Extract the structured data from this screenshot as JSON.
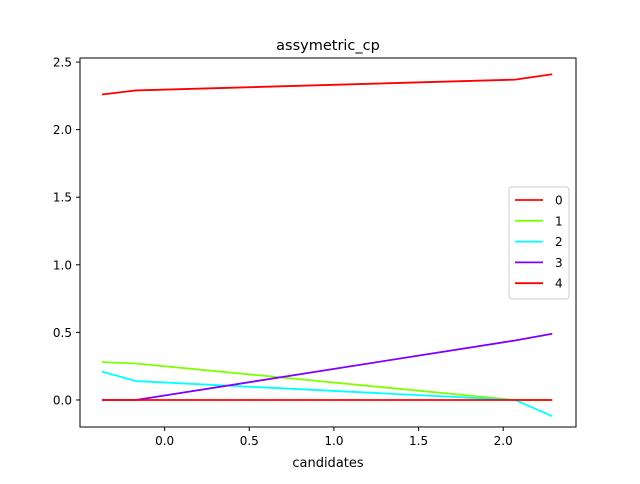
{
  "chart_data": {
    "type": "line",
    "title": "assymetric_cp",
    "xlabel": "candidates",
    "ylabel": "",
    "xlim": [
      -0.5,
      2.43
    ],
    "ylim": [
      -0.2,
      2.53
    ],
    "xticks": [
      "0.0",
      "0.5",
      "1.0",
      "1.5",
      "2.0"
    ],
    "xtick_values": [
      0.0,
      0.5,
      1.0,
      1.5,
      2.0
    ],
    "yticks": [
      "0.0",
      "0.5",
      "1.0",
      "1.5",
      "2.0",
      "2.5"
    ],
    "ytick_values": [
      0.0,
      0.5,
      1.0,
      1.5,
      2.0,
      2.5
    ],
    "grid": false,
    "legend_position": "center-right",
    "series": [
      {
        "name": "0",
        "color": "#ff0000",
        "x": [
          -0.37,
          -0.17,
          2.07,
          2.29
        ],
        "y": [
          2.26,
          2.29,
          2.37,
          2.41
        ]
      },
      {
        "name": "1",
        "color": "#80ff00",
        "x": [
          -0.37,
          -0.17,
          2.07,
          2.29
        ],
        "y": [
          0.28,
          0.27,
          0.0,
          0.0
        ]
      },
      {
        "name": "2",
        "color": "#00ffff",
        "x": [
          -0.37,
          -0.17,
          2.07,
          2.29
        ],
        "y": [
          0.21,
          0.14,
          0.0,
          -0.12
        ]
      },
      {
        "name": "3",
        "color": "#8000ff",
        "x": [
          -0.37,
          -0.17,
          2.07,
          2.29
        ],
        "y": [
          0.0,
          0.0,
          0.44,
          0.49
        ]
      },
      {
        "name": "4",
        "color": "#ff0000",
        "x": [
          -0.37,
          -0.17,
          2.07,
          2.29
        ],
        "y": [
          0.0,
          0.0,
          0.0,
          0.0
        ]
      }
    ]
  }
}
